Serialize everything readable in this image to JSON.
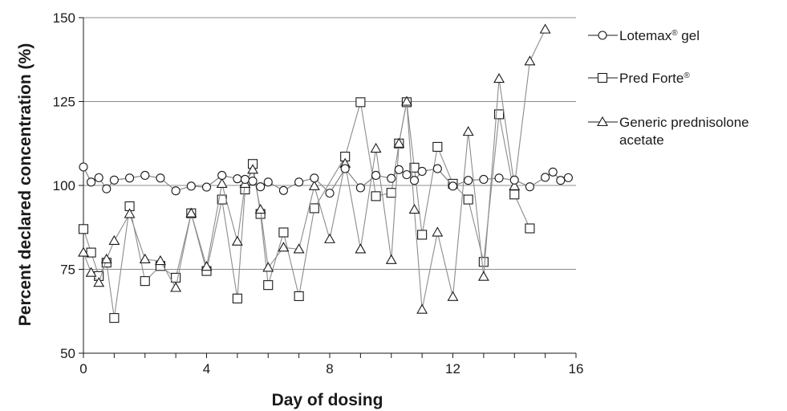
{
  "chart_data": {
    "type": "line",
    "xlabel": "Day of dosing",
    "ylabel": "Percent declared concentration (%)",
    "xlim": [
      0,
      16
    ],
    "ylim": [
      50,
      150
    ],
    "xticks": [
      0,
      4,
      8,
      12,
      16
    ],
    "yticks": [
      50,
      75,
      100,
      125,
      150
    ],
    "xtick_labels": [
      "0",
      "4",
      "8",
      "12",
      "16"
    ],
    "ytick_labels": [
      "50",
      "75",
      "100",
      "125",
      "150"
    ],
    "grid": "horizontal",
    "legend_position": "right",
    "line_color": "#8c8c8c",
    "marker_edge": "#1a1a1a",
    "series": [
      {
        "name": "Lotemax® gel",
        "legend": {
          "main": "Lotemax",
          "sup": "®",
          "rest": " gel",
          "line2": ""
        },
        "marker": "circle",
        "x": [
          0,
          0.25,
          0.5,
          0.75,
          1,
          1.5,
          2,
          2.5,
          3,
          3.5,
          4,
          4.5,
          5,
          5.25,
          5.5,
          5.75,
          6,
          6.5,
          7,
          7.5,
          8,
          8.5,
          9,
          9.5,
          10,
          10.25,
          10.5,
          10.75,
          11,
          11.5,
          12,
          12.5,
          13,
          13.5,
          14,
          14.5,
          15,
          15.25,
          15.5,
          15.75
        ],
        "y": [
          105.5,
          101,
          102.3,
          99,
          101.6,
          102.2,
          103,
          102.2,
          98.4,
          99.8,
          99.5,
          103,
          102,
          101.8,
          101.3,
          99.6,
          101,
          98.5,
          101,
          102.2,
          97.7,
          105,
          99.3,
          103,
          102.1,
          104.7,
          103.2,
          101.5,
          104.2,
          105,
          99.8,
          101.5,
          101.8,
          102.2,
          101.6,
          99.6,
          102.4,
          104,
          101.5,
          102.3
        ]
      },
      {
        "name": "Pred Forte®",
        "legend": {
          "main": "Pred Forte",
          "sup": "®",
          "rest": "",
          "line2": ""
        },
        "marker": "square",
        "x": [
          0,
          0.25,
          0.5,
          0.75,
          1,
          1.5,
          2,
          2.5,
          3,
          3.5,
          4,
          4.5,
          5,
          5.25,
          5.5,
          5.75,
          6,
          6.5,
          7,
          7.5,
          8.5,
          9,
          9.5,
          10,
          10.25,
          10.5,
          10.75,
          11,
          11.5,
          12,
          12.5,
          13,
          13.5,
          14,
          14.5
        ],
        "y": [
          87,
          80,
          73,
          77,
          60.5,
          93.8,
          71.5,
          76,
          72.5,
          91.7,
          74.5,
          95.8,
          66.3,
          98.8,
          106.4,
          91.5,
          70.3,
          86,
          67,
          93.2,
          108.6,
          124.8,
          96.8,
          97.8,
          112.5,
          124.8,
          105.3,
          85.3,
          111.5,
          100.5,
          95.8,
          77.2,
          121.2,
          97.3,
          87.2
        ]
      },
      {
        "name": "Generic prednisolone acetate",
        "legend": {
          "main": "Generic prednisolone",
          "sup": "",
          "rest": "",
          "line2": "acetate"
        },
        "marker": "triangle",
        "x": [
          0,
          0.25,
          0.5,
          0.75,
          1,
          1.5,
          2,
          2.5,
          3,
          3.5,
          4,
          4.5,
          5,
          5.25,
          5.5,
          5.75,
          6,
          6.5,
          7,
          7.5,
          8,
          8.5,
          9,
          9.5,
          10,
          10.25,
          10.5,
          10.75,
          11,
          11.5,
          12,
          12.5,
          13,
          13.5,
          14,
          14.5,
          15
        ],
        "y": [
          80,
          74,
          71,
          78,
          83.5,
          91.5,
          78,
          77.5,
          69.5,
          91.7,
          75.8,
          100.5,
          83.3,
          100.5,
          104.7,
          92.8,
          75.5,
          81.5,
          81,
          99.8,
          84,
          106.5,
          81,
          111,
          77.8,
          112.5,
          125,
          92.8,
          63,
          86,
          66.8,
          116,
          72.8,
          131.8,
          99.8,
          137,
          146.5
        ]
      }
    ]
  }
}
